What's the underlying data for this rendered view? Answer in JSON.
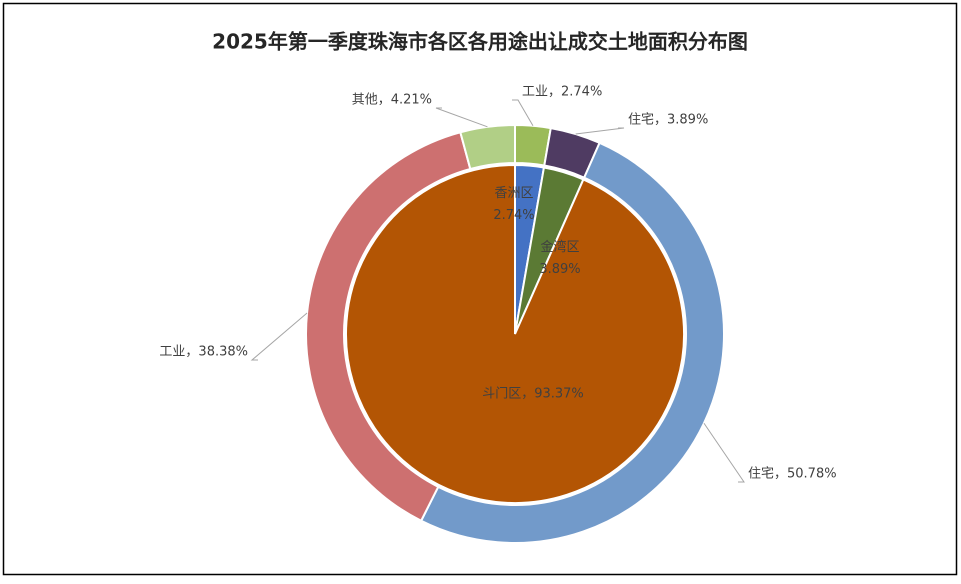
{
  "chart_data": {
    "type": "pie",
    "title": "2025年第一季度珠海市各区各用途出让成交土地面积分布图",
    "inner": {
      "values": [
        2.74,
        3.89,
        93.37
      ],
      "value_labels": [
        "香洲区\n2.74%",
        "金湾区\n3.89%",
        "斗门区，93.37%"
      ],
      "colors": [
        "#4472c4",
        "#5b7a34",
        "#b35504"
      ]
    },
    "outer": {
      "values": [
        2.74,
        3.89,
        50.78,
        38.38,
        4.21
      ],
      "value_labels": [
        "工业，2.74%",
        "住宅，3.89%",
        "住宅，50.78%",
        "工业，38.38%",
        "其他，4.21%"
      ],
      "colors": [
        "#9bbb59",
        "#4f3b62",
        "#729aca",
        "#cd7070",
        "#b1cf86"
      ]
    }
  }
}
